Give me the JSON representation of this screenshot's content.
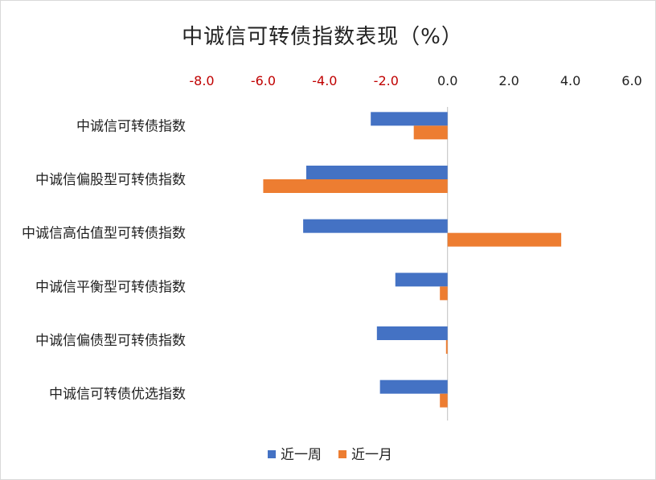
{
  "chart_data": {
    "type": "bar",
    "orientation": "horizontal",
    "title": "中诚信可转债指数表现（%）",
    "xlim": [
      -8.0,
      6.0
    ],
    "x_ticks": [
      "-8.0",
      "-6.0",
      "-4.0",
      "-2.0",
      "0.0",
      "2.0",
      "4.0",
      "6.0"
    ],
    "x_tick_values": [
      -8,
      -6,
      -4,
      -2,
      0,
      2,
      4,
      6
    ],
    "x_axis_position": "top",
    "negative_tick_color": "#c00000",
    "positive_tick_color": "#222222",
    "grid": false,
    "legend_position": "bottom",
    "categories": [
      "中诚信可转债指数",
      "中诚信偏股型可转债指数",
      "中诚信高估值型可转债指数",
      "中诚信平衡型可转债指数",
      "中诚信偏债型可转债指数",
      "中诚信可转债优选指数"
    ],
    "series": [
      {
        "name": "近一周",
        "color": "#4472c4",
        "values": [
          -2.5,
          -4.6,
          -4.7,
          -1.7,
          -2.3,
          -2.2
        ]
      },
      {
        "name": "近一月",
        "color": "#ed7d31",
        "values": [
          -1.1,
          -6.0,
          3.7,
          -0.25,
          -0.05,
          -0.25
        ]
      }
    ]
  }
}
